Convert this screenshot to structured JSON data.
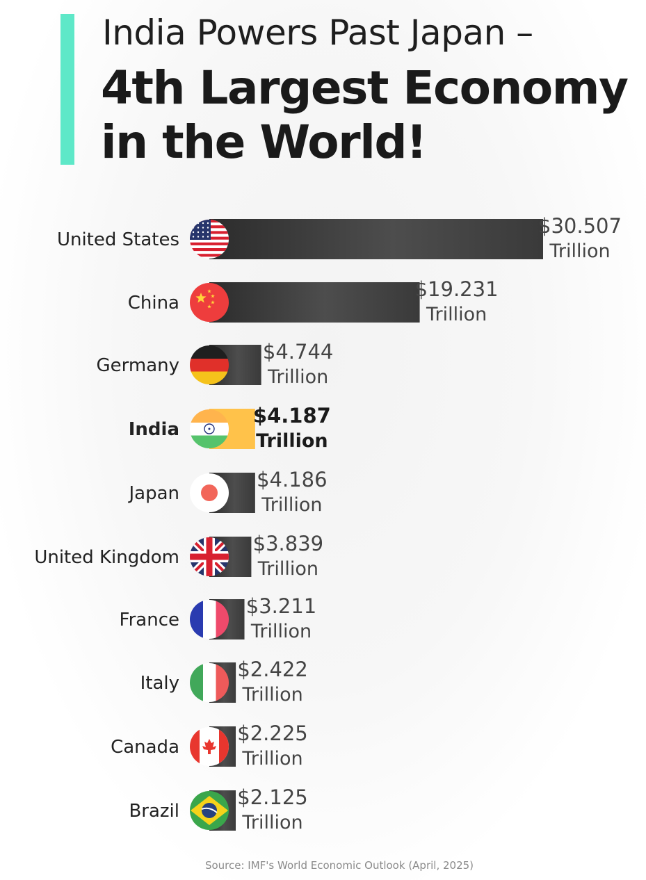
{
  "title": {
    "line1": "India Powers Past Japan –",
    "line2": "4th Largest Economy",
    "line3": "in the World!"
  },
  "colors": {
    "accent": "#5ee8c8",
    "bar": "#3a3a3a",
    "highlight_bar": "#ffc24a"
  },
  "chart_data": {
    "type": "bar",
    "orientation": "horizontal",
    "unit": "Trillion",
    "categories": [
      "United States",
      "China",
      "Germany",
      "India",
      "Japan",
      "United Kingdom",
      "France",
      "Italy",
      "Canada",
      "Brazil"
    ],
    "values": [
      30.507,
      19.231,
      4.744,
      4.187,
      4.186,
      3.839,
      3.211,
      2.422,
      2.225,
      2.125
    ],
    "value_labels": [
      "$30.507",
      "$19.231",
      "$4.744",
      "$4.187",
      "$4.186",
      "$3.839",
      "$3.211",
      "$2.422",
      "$2.225",
      "$2.125"
    ],
    "unit_label": "Trillion",
    "highlight": "India",
    "flag_icons": [
      "us-flag-icon",
      "china-flag-icon",
      "germany-flag-icon",
      "india-flag-icon",
      "japan-flag-icon",
      "uk-flag-icon",
      "france-flag-icon",
      "italy-flag-icon",
      "canada-flag-icon",
      "brazil-flag-icon"
    ]
  },
  "source": "Source: IMF's World Economic Outlook (April, 2025)"
}
